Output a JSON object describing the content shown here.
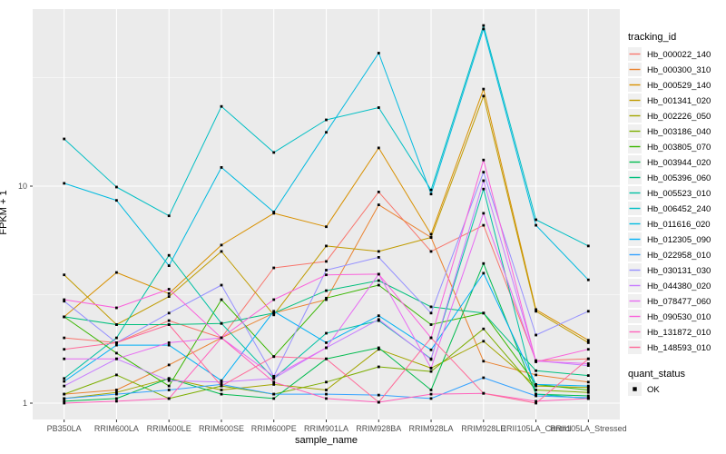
{
  "chart_data": {
    "type": "line",
    "title": "",
    "xlabel": "sample_name",
    "ylabel": "FPKM + 1",
    "yscale": "log10",
    "ylim": [
      0.84,
      65
    ],
    "grid": true,
    "panel_background": "#EBEBEB",
    "gridline_color": "#FFFFFF",
    "legend_key_background": "#F0F0F0",
    "marker": {
      "shape": "square",
      "color": "#000000"
    },
    "y_ticks": [
      {
        "label": "1",
        "value": 1
      },
      {
        "label": "10",
        "value": 10
      }
    ],
    "y_minor_gridlines": [
      3.1623,
      31.6228
    ],
    "categories": [
      "PB350LA",
      "RRIM600LA",
      "RRIM600LE",
      "RRIM600SE",
      "RRIM600PE",
      "RRIM901LA",
      "RRIM928BA",
      "RRIM928LA",
      "RRIM928LE",
      "RRII105LA_Control",
      "RRII105LA_Stressed"
    ],
    "series": [
      {
        "name": "Hb_000022_140",
        "color": "#F8766D",
        "values": [
          2.0,
          1.9,
          2.4,
          2.0,
          4.2,
          4.5,
          9.4,
          5.0,
          6.6,
          1.57,
          1.6
        ]
      },
      {
        "name": "Hb_000300_310",
        "color": "#EA8331",
        "values": [
          1.1,
          1.15,
          1.5,
          2.0,
          2.6,
          3.0,
          8.2,
          5.8,
          1.56,
          1.35,
          1.25
        ]
      },
      {
        "name": "Hb_000529_140",
        "color": "#D89000",
        "values": [
          2.5,
          4.0,
          3.2,
          5.35,
          7.5,
          6.5,
          15.0,
          6.0,
          28.0,
          2.7,
          1.95
        ]
      },
      {
        "name": "Hb_001341_020",
        "color": "#C09B00",
        "values": [
          3.9,
          2.3,
          3.1,
          5.0,
          2.55,
          5.3,
          5.0,
          5.8,
          26.0,
          2.65,
          1.9
        ]
      },
      {
        "name": "Hb_002226_050",
        "color": "#A3A500",
        "values": [
          1.05,
          1.12,
          1.3,
          1.15,
          1.22,
          1.15,
          1.77,
          1.45,
          1.93,
          1.2,
          1.18
        ]
      },
      {
        "name": "Hb_003186_040",
        "color": "#7CAE00",
        "values": [
          1.1,
          1.35,
          1.05,
          1.2,
          1.1,
          1.25,
          1.47,
          1.4,
          2.2,
          1.15,
          1.12
        ]
      },
      {
        "name": "Hb_003805_070",
        "color": "#39B600",
        "values": [
          2.5,
          1.7,
          1.2,
          3.0,
          1.64,
          3.05,
          3.5,
          2.3,
          2.6,
          1.22,
          1.15
        ]
      },
      {
        "name": "Hb_003944_020",
        "color": "#00BB4E",
        "values": [
          1.02,
          1.05,
          1.3,
          1.1,
          1.05,
          1.6,
          1.8,
          1.15,
          4.4,
          1.1,
          1.08
        ]
      },
      {
        "name": "Hb_005396_060",
        "color": "#00BF7D",
        "values": [
          2.5,
          2.3,
          2.3,
          2.33,
          2.6,
          3.3,
          3.67,
          2.78,
          2.6,
          1.41,
          1.34
        ]
      },
      {
        "name": "Hb_005523_010",
        "color": "#00C1A3",
        "values": [
          1.3,
          2.0,
          4.8,
          2.33,
          1.3,
          2.1,
          2.4,
          1.6,
          9.7,
          1.1,
          1.05
        ]
      },
      {
        "name": "Hb_006452_240",
        "color": "#00BFC4",
        "values": [
          16.5,
          9.9,
          7.3,
          23.3,
          14.3,
          20.2,
          23.0,
          9.6,
          55.0,
          7.0,
          5.3
        ]
      },
      {
        "name": "Hb_011616_020",
        "color": "#00BAE0",
        "values": [
          10.3,
          8.6,
          4.3,
          12.2,
          7.6,
          17.7,
          41.0,
          9.2,
          53.0,
          6.6,
          3.7
        ]
      },
      {
        "name": "Hb_012305_090",
        "color": "#00B0F6",
        "values": [
          1.26,
          1.85,
          1.85,
          1.27,
          2.65,
          1.9,
          2.53,
          1.76,
          3.97,
          1.22,
          1.2
        ]
      },
      {
        "name": "Hb_022958_010",
        "color": "#35A2FF",
        "values": [
          1.05,
          1.1,
          1.15,
          1.22,
          1.1,
          1.1,
          1.09,
          1.05,
          1.31,
          1.08,
          1.06
        ]
      },
      {
        "name": "Hb_030131_030",
        "color": "#9590FF",
        "values": [
          2.95,
          1.9,
          2.6,
          3.5,
          1.33,
          4.1,
          4.7,
          2.6,
          11.6,
          2.06,
          2.65
        ]
      },
      {
        "name": "Hb_044380_020",
        "color": "#C77CFF",
        "values": [
          1.2,
          1.6,
          1.27,
          1.25,
          1.3,
          1.8,
          2.43,
          1.59,
          10.6,
          1.57,
          1.49
        ]
      },
      {
        "name": "Hb_078477_060",
        "color": "#E76BF3",
        "values": [
          1.6,
          1.6,
          1.9,
          2.0,
          1.33,
          1.8,
          3.93,
          1.45,
          7.5,
          1.56,
          1.52
        ]
      },
      {
        "name": "Hb_090530_010",
        "color": "#FA62DB",
        "values": [
          3.0,
          2.75,
          3.35,
          2.0,
          3.0,
          3.9,
          3.93,
          2.0,
          13.2,
          1.55,
          1.77
        ]
      },
      {
        "name": "Hb_131872_010",
        "color": "#FF62BC",
        "values": [
          1.0,
          1.02,
          1.05,
          2.0,
          1.25,
          1.05,
          1.01,
          1.1,
          1.11,
          1.02,
          1.05
        ]
      },
      {
        "name": "Hb_148593_010",
        "color": "#FF6A98",
        "values": [
          1.77,
          1.9,
          2.3,
          1.2,
          1.64,
          1.6,
          1.01,
          2.0,
          1.11,
          1.0,
          1.6
        ]
      }
    ],
    "legends": [
      {
        "title": "tracking_id",
        "type": "series-colors",
        "position": "right"
      },
      {
        "title": "quant_status",
        "position": "right",
        "items": [
          {
            "label": "OK",
            "marker": "black-square"
          }
        ]
      }
    ]
  }
}
